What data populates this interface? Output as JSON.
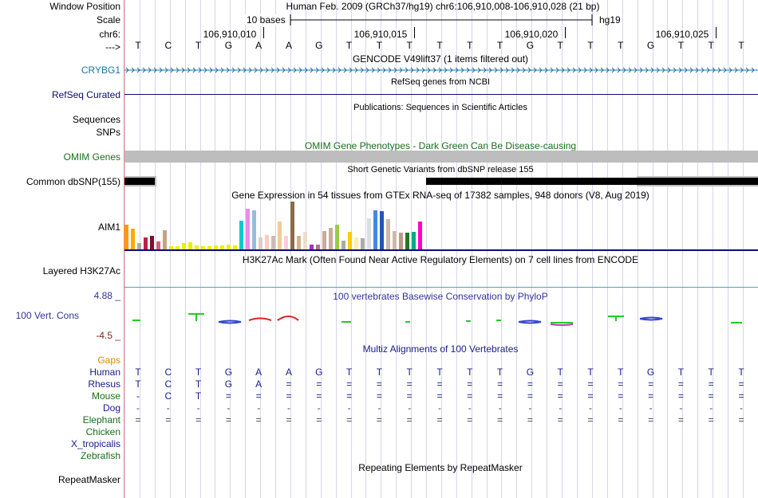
{
  "header": {
    "window_position_label": "Window Position",
    "scale_label": "Scale",
    "chrom_label": "chr6:",
    "strand_label": "--->",
    "assembly_text": "Human Feb. 2009 (GRCh37/hg19)   chr6:106,910,008-106,910,028 (21 bp)",
    "scale_text": "10 bases",
    "db_text": "hg19",
    "ruler_ticks": [
      "106,910,010",
      "106,910,015",
      "106,910,020",
      "106,910,025"
    ]
  },
  "sequence": [
    "T",
    "C",
    "T",
    "G",
    "A",
    "A",
    "G",
    "T",
    "T",
    "T",
    "T",
    "T",
    "T",
    "G",
    "T",
    "T",
    "T",
    "G",
    "T",
    "T",
    "T"
  ],
  "tracks": {
    "gencode_title": "GENCODE V49lift37 (1 items filtered out)",
    "crybg1_label": "CRYBG1",
    "refseq_title": "RefSeq genes from NCBI",
    "refseq_label": "RefSeq Curated",
    "publications_title": "Publications: Sequences in Scientific Articles",
    "sequences_label": "Sequences",
    "snps_label": "SNPs",
    "omim_title": "OMIM Gene Phenotypes - Dark Green Can Be Disease-causing",
    "omim_label": "OMIM Genes",
    "dbsnp_title": "Short Genetic Variants from dbSNP release 155",
    "dbsnp_label": "Common dbSNP(155)",
    "gtex_title": "Gene Expression in 54 tissues from GTEx RNA-seq of 17382 samples, 948 donors (V8, Aug 2019)",
    "gtex_label": "AIM1",
    "h3k27ac_title": "H3K27Ac Mark (Often Found Near Active Regulatory Elements) on 7 cell lines from ENCODE",
    "h3k27ac_label": "Layered H3K27Ac",
    "phylop_title": "100 vertebrates Basewise Conservation by PhyloP",
    "phylop_label": "100 Vert. Cons",
    "phylop_max": "4.88 _",
    "phylop_min": "-4.5 _",
    "multiz_title": "Multiz Alignments of 100 Vertebrates",
    "gaps_label": "Gaps",
    "repeat_title": "Repeating Elements by RepeatMasker",
    "repeat_label": "RepeatMasker"
  },
  "alignment": [
    {
      "species": "Human",
      "color": "#1a1a8c",
      "bases": [
        "T",
        "C",
        "T",
        "G",
        "A",
        "A",
        "G",
        "T",
        "T",
        "T",
        "T",
        "T",
        "T",
        "G",
        "T",
        "T",
        "T",
        "G",
        "T",
        "T",
        "T"
      ]
    },
    {
      "species": "Rhesus",
      "color": "#1a1a8c",
      "bases": [
        "T",
        "C",
        "T",
        "G",
        "A",
        "=",
        "=",
        "=",
        "=",
        "=",
        "=",
        "=",
        "=",
        "=",
        "=",
        "=",
        "=",
        "=",
        "=",
        "=",
        "="
      ]
    },
    {
      "species": "Mouse",
      "color": "#1a6e1a",
      "bases": [
        "-",
        "C",
        "T",
        "=",
        "=",
        "=",
        "=",
        "=",
        "=",
        "=",
        "=",
        "=",
        "=",
        "=",
        "=",
        "=",
        "=",
        "=",
        "=",
        "=",
        "="
      ]
    },
    {
      "species": "Dog",
      "color": "#1a1a8c",
      "bases": [
        "-",
        "-",
        "-",
        "-",
        "-",
        "-",
        "-",
        "-",
        "-",
        "-",
        "-",
        "-",
        "-",
        "-",
        "-",
        "-",
        "-",
        "-",
        "-",
        "-",
        "-"
      ]
    },
    {
      "species": "Elephant",
      "color": "#1a6e1a",
      "bases": [
        "=",
        "=",
        "=",
        "=",
        "=",
        "=",
        "=",
        "=",
        "=",
        "=",
        "=",
        "=",
        "=",
        "=",
        "=",
        "=",
        "=",
        "=",
        "=",
        "=",
        "="
      ]
    },
    {
      "species": "Chicken",
      "color": "#1a6e1a",
      "bases": []
    },
    {
      "species": "X_tropicalis",
      "color": "#1a1a8c",
      "bases": []
    },
    {
      "species": "Zebrafish",
      "color": "#1a6e1a",
      "bases": []
    }
  ],
  "gtex_expression": [
    {
      "color": "#ff9900",
      "value": 31
    },
    {
      "color": "#ffaa00",
      "value": 26
    },
    {
      "color": "#aaaaaa",
      "value": 8
    },
    {
      "color": "#bb2244",
      "value": 15
    },
    {
      "color": "#7a1030",
      "value": 17
    },
    {
      "color": "#cc6677",
      "value": 10
    },
    {
      "color": "#c4a484",
      "value": 24
    },
    {
      "color": "#eeee00",
      "value": 4
    },
    {
      "color": "#eeee00",
      "value": 4
    },
    {
      "color": "#eeee00",
      "value": 8
    },
    {
      "color": "#eeee00",
      "value": 9
    },
    {
      "color": "#eeee00",
      "value": 5
    },
    {
      "color": "#eeee00",
      "value": 4
    },
    {
      "color": "#eeee00",
      "value": 4
    },
    {
      "color": "#eeee00",
      "value": 5
    },
    {
      "color": "#eeee00",
      "value": 5
    },
    {
      "color": "#eeee00",
      "value": 6
    },
    {
      "color": "#eeee00",
      "value": 5
    },
    {
      "color": "#00cccc",
      "value": 36
    },
    {
      "color": "#ee88ee",
      "value": 51
    },
    {
      "color": "#99bbdd",
      "value": 49
    },
    {
      "color": "#ddcccc",
      "value": 15
    },
    {
      "color": "#ffccbb",
      "value": 18
    },
    {
      "color": "#ccbbbb",
      "value": 17
    },
    {
      "color": "#eecc99",
      "value": 35
    },
    {
      "color": "#ffccdd",
      "value": 17
    },
    {
      "color": "#8b6b4b",
      "value": 60
    },
    {
      "color": "#d2b48c",
      "value": 17
    },
    {
      "color": "#eeddcc",
      "value": 22
    },
    {
      "color": "#9933cc",
      "value": 6
    },
    {
      "color": "#aa7788",
      "value": 6
    },
    {
      "color": "#ccaa99",
      "value": 23
    },
    {
      "color": "#ccaa99",
      "value": 27
    },
    {
      "color": "#99cc44",
      "value": 31
    },
    {
      "color": "#aaaaaa",
      "value": 11
    },
    {
      "color": "#ffcc00",
      "value": 22
    },
    {
      "color": "#ffeeaa",
      "value": 15
    },
    {
      "color": "#aaaaaa",
      "value": 14
    },
    {
      "color": "#dddddd",
      "value": 39
    },
    {
      "color": "#4488dd",
      "value": 49
    },
    {
      "color": "#2255bb",
      "value": 48
    },
    {
      "color": "#ccbbaa",
      "value": 38
    },
    {
      "color": "#ccbbaa",
      "value": 23
    },
    {
      "color": "#bb9988",
      "value": 21
    },
    {
      "color": "#227722",
      "value": 21
    },
    {
      "color": "#00aa88",
      "value": 22
    },
    {
      "color": "#ff00cc",
      "value": 35
    }
  ]
}
